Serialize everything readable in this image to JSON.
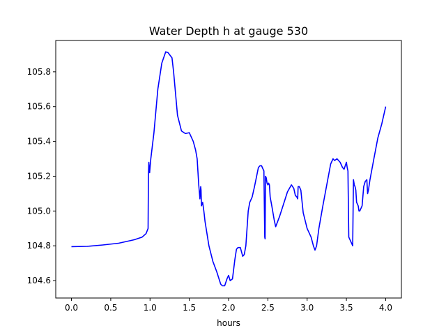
{
  "chart_data": {
    "type": "line",
    "title": "Water Depth h at gauge 530",
    "xlabel": "hours",
    "ylabel": "",
    "xlim": [
      -0.2,
      4.2
    ],
    "ylim": [
      104.5,
      105.98
    ],
    "xticks": [
      0.0,
      0.5,
      1.0,
      1.5,
      2.0,
      2.5,
      3.0,
      3.5,
      4.0
    ],
    "xtick_labels": [
      "0.0",
      "0.5",
      "1.0",
      "1.5",
      "2.0",
      "2.5",
      "3.0",
      "3.5",
      "4.0"
    ],
    "yticks": [
      104.6,
      104.8,
      105.0,
      105.2,
      105.4,
      105.6,
      105.8
    ],
    "ytick_labels": [
      "104.6",
      "104.8",
      "105.0",
      "105.2",
      "105.4",
      "105.6",
      "105.8"
    ],
    "grid": false,
    "series": [
      {
        "color": "#0000ff",
        "x": [
          0.0,
          0.2,
          0.4,
          0.6,
          0.7,
          0.8,
          0.9,
          0.95,
          0.975,
          0.98,
          0.985,
          0.995,
          1.01,
          1.05,
          1.1,
          1.15,
          1.2,
          1.23,
          1.28,
          1.3,
          1.35,
          1.4,
          1.45,
          1.5,
          1.55,
          1.58,
          1.6,
          1.62,
          1.63,
          1.635,
          1.645,
          1.65,
          1.655,
          1.67,
          1.685,
          1.69,
          1.7,
          1.75,
          1.8,
          1.85,
          1.9,
          1.92,
          1.95,
          1.98,
          2.0,
          2.02,
          2.05,
          2.08,
          2.1,
          2.12,
          2.15,
          2.18,
          2.2,
          2.22,
          2.25,
          2.27,
          2.3,
          2.33,
          2.38,
          2.4,
          2.42,
          2.45,
          2.46,
          2.465,
          2.47,
          2.48,
          2.49,
          2.5,
          2.51,
          2.52,
          2.53,
          2.55,
          2.58,
          2.6,
          2.65,
          2.7,
          2.75,
          2.8,
          2.83,
          2.85,
          2.87,
          2.88,
          2.885,
          2.9,
          2.92,
          2.95,
          3.0,
          3.05,
          3.08,
          3.1,
          3.12,
          3.15,
          3.2,
          3.25,
          3.3,
          3.33,
          3.35,
          3.38,
          3.4,
          3.42,
          3.45,
          3.47,
          3.5,
          3.51,
          3.52,
          3.53,
          3.54,
          3.56,
          3.58,
          3.59,
          3.6,
          3.61,
          3.62,
          3.63,
          3.64,
          3.65,
          3.66,
          3.67,
          3.7,
          3.72,
          3.74,
          3.76,
          3.77,
          3.78,
          3.79,
          3.8,
          3.85,
          3.9,
          3.95,
          4.0
        ],
        "y": [
          104.795,
          104.797,
          104.805,
          104.815,
          104.825,
          104.835,
          104.85,
          104.87,
          104.9,
          105.21,
          105.28,
          105.22,
          105.3,
          105.45,
          105.7,
          105.85,
          105.915,
          105.91,
          105.88,
          105.8,
          105.55,
          105.46,
          105.445,
          105.45,
          105.4,
          105.35,
          105.3,
          105.15,
          105.1,
          105.07,
          105.14,
          105.12,
          105.03,
          105.05,
          105.0,
          104.98,
          104.94,
          104.8,
          104.71,
          104.65,
          104.58,
          104.57,
          104.57,
          104.61,
          104.63,
          104.6,
          104.61,
          104.72,
          104.78,
          104.79,
          104.79,
          104.74,
          104.75,
          104.8,
          105.0,
          105.05,
          105.08,
          105.14,
          105.25,
          105.26,
          105.26,
          105.23,
          104.85,
          104.84,
          105.2,
          105.19,
          105.16,
          105.15,
          105.16,
          105.15,
          105.08,
          105.03,
          104.95,
          104.91,
          104.97,
          105.04,
          105.11,
          105.15,
          105.13,
          105.09,
          105.08,
          105.07,
          105.14,
          105.14,
          105.12,
          104.99,
          104.9,
          104.85,
          104.8,
          104.775,
          104.8,
          104.9,
          105.03,
          105.15,
          105.27,
          105.3,
          105.29,
          105.3,
          105.29,
          105.28,
          105.25,
          105.24,
          105.28,
          105.25,
          105.23,
          104.85,
          104.84,
          104.82,
          104.8,
          105.18,
          105.15,
          105.14,
          105.12,
          105.05,
          105.04,
          105.03,
          105.0,
          105.0,
          105.03,
          105.14,
          105.17,
          105.18,
          105.1,
          105.12,
          105.15,
          105.18,
          105.3,
          105.42,
          105.5,
          105.6
        ]
      }
    ]
  }
}
